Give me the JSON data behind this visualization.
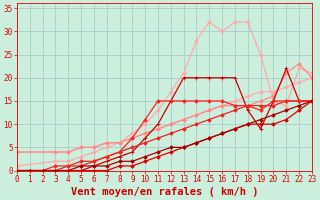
{
  "background_color": "#cceedd",
  "grid_color": "#aacccc",
  "xlabel": "Vent moyen/en rafales ( km/h )",
  "xlim": [
    0,
    23
  ],
  "ylim": [
    0,
    36
  ],
  "xticks": [
    0,
    1,
    2,
    3,
    4,
    5,
    6,
    7,
    8,
    9,
    10,
    11,
    12,
    13,
    14,
    15,
    16,
    17,
    18,
    19,
    20,
    21,
    22,
    23
  ],
  "yticks": [
    0,
    5,
    10,
    15,
    20,
    25,
    30,
    35
  ],
  "lines": [
    {
      "x": [
        0,
        3,
        4,
        5,
        6,
        7,
        8,
        9,
        10,
        11,
        12,
        13,
        14,
        15,
        16,
        17,
        18,
        19,
        20,
        21,
        22,
        23
      ],
      "y": [
        4,
        4,
        4,
        5,
        5,
        6,
        6,
        7,
        8,
        9,
        10,
        11,
        12,
        13,
        14,
        15,
        16,
        17,
        17,
        18,
        19,
        20
      ],
      "color": "#ffaaaa",
      "marker": "D",
      "markersize": 1.8,
      "linewidth": 0.9
    },
    {
      "x": [
        0,
        3,
        4,
        5,
        6,
        7,
        8,
        9,
        10,
        11,
        12,
        13,
        14,
        15,
        16,
        17,
        18,
        19,
        20,
        21,
        22,
        23
      ],
      "y": [
        1,
        2,
        2,
        3,
        4,
        5,
        6,
        8,
        10,
        13,
        17,
        21,
        28,
        32,
        30,
        32,
        32,
        25,
        15,
        14,
        22,
        21
      ],
      "color": "#ffaaaa",
      "marker": "D",
      "markersize": 1.8,
      "linewidth": 0.9
    },
    {
      "x": [
        0,
        3,
        4,
        5,
        6,
        7,
        8,
        9,
        10,
        11,
        12,
        13,
        14,
        15,
        16,
        17,
        18,
        19,
        20,
        21,
        22,
        23
      ],
      "y": [
        4,
        4,
        4,
        5,
        5,
        6,
        6,
        7,
        8,
        9,
        10,
        11,
        12,
        13,
        14,
        14,
        14,
        15,
        16,
        21,
        23,
        20
      ],
      "color": "#ff8888",
      "marker": "D",
      "markersize": 1.8,
      "linewidth": 0.9
    },
    {
      "x": [
        0,
        1,
        2,
        3,
        4,
        5,
        6,
        7,
        8,
        9,
        10,
        11,
        12,
        13,
        14,
        15,
        16,
        17,
        18,
        19,
        20,
        21,
        22,
        23
      ],
      "y": [
        0,
        0,
        0,
        0,
        0,
        0,
        1,
        2,
        3,
        4,
        7,
        10,
        15,
        20,
        20,
        20,
        20,
        20,
        13,
        9,
        15,
        22,
        15,
        15
      ],
      "color": "#cc0000",
      "marker": "+",
      "markersize": 3.5,
      "linewidth": 0.9
    },
    {
      "x": [
        0,
        1,
        2,
        3,
        4,
        5,
        6,
        7,
        8,
        9,
        10,
        11,
        12,
        13,
        14,
        15,
        16,
        17,
        18,
        19,
        20,
        21,
        22,
        23
      ],
      "y": [
        0,
        0,
        0,
        0,
        0,
        0,
        0,
        0,
        1,
        1,
        2,
        3,
        4,
        5,
        6,
        7,
        8,
        9,
        10,
        10,
        10,
        11,
        13,
        15
      ],
      "color": "#dd0000",
      "marker": "D",
      "markersize": 1.8,
      "linewidth": 0.9
    },
    {
      "x": [
        0,
        1,
        2,
        3,
        4,
        5,
        6,
        7,
        8,
        9,
        10,
        11,
        12,
        13,
        14,
        15,
        16,
        17,
        18,
        19,
        20,
        21,
        22,
        23
      ],
      "y": [
        0,
        0,
        0,
        0,
        1,
        1,
        2,
        3,
        4,
        5,
        6,
        7,
        8,
        9,
        10,
        11,
        12,
        13,
        14,
        14,
        14,
        15,
        15,
        15
      ],
      "color": "#ee2222",
      "marker": "D",
      "markersize": 1.8,
      "linewidth": 0.9
    },
    {
      "x": [
        0,
        1,
        2,
        3,
        4,
        5,
        6,
        7,
        8,
        9,
        10,
        11,
        12,
        13,
        14,
        15,
        16,
        17,
        18,
        19,
        20,
        21,
        22,
        23
      ],
      "y": [
        0,
        0,
        0,
        1,
        1,
        2,
        2,
        3,
        4,
        7,
        11,
        15,
        15,
        15,
        15,
        15,
        15,
        14,
        14,
        13,
        15,
        15,
        15,
        15
      ],
      "color": "#ff2222",
      "marker": "D",
      "markersize": 1.8,
      "linewidth": 0.9
    },
    {
      "x": [
        0,
        1,
        2,
        3,
        4,
        5,
        6,
        7,
        8,
        9,
        10,
        11,
        12,
        13,
        14,
        15,
        16,
        17,
        18,
        19,
        20,
        21,
        22,
        23
      ],
      "y": [
        0,
        0,
        0,
        0,
        0,
        1,
        1,
        1,
        2,
        2,
        3,
        4,
        5,
        5,
        6,
        7,
        8,
        9,
        10,
        11,
        12,
        13,
        14,
        15
      ],
      "color": "#aa0000",
      "marker": "D",
      "markersize": 1.8,
      "linewidth": 0.9
    }
  ],
  "tick_fontsize": 5.5,
  "xlabel_fontsize": 7.5,
  "tick_color": "#dd0000",
  "xlabel_color": "#cc0000"
}
